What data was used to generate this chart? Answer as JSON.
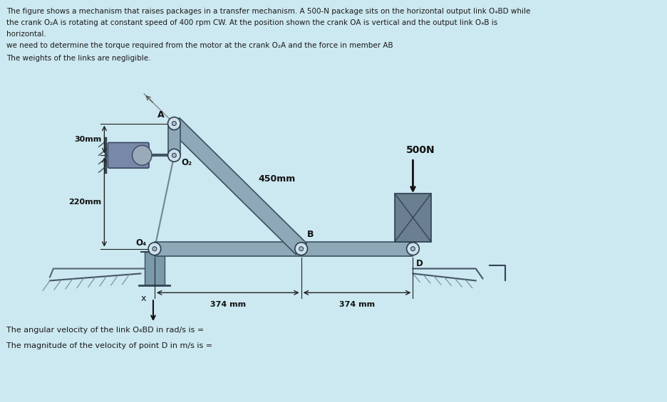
{
  "bg_color": "#cce8f0",
  "text_color": "#1a1a1a",
  "title_lines": [
    "The figure shows a mechanism that raises packages in a transfer mechanism. A 500-N package sits on the horizontal output link O₄BD while",
    "the crank O₂A is rotating at constant speed of 400 rpm CW. At the position shown the crank OA is vertical and the output link O₄B is",
    "horizontal."
  ],
  "subtitle1": "we need to determine the torque required from the motor at the crank O₂A and the force in member AB",
  "subtitle2": "The weights of the links are negligible.",
  "footer1": "The angular velocity of the link O₄BD in rad/s is =",
  "footer2": "The magnitude of the velocity of point D in m/s is =",
  "link_color": "#8fa8b8",
  "link_edge": "#3a5060",
  "joint_color": "#d0e0ea",
  "joint_edge": "#2a4050",
  "pkg_color": "#6a8090",
  "pkg_edge": "#2a4050",
  "motor_color": "#7888a8",
  "motor_edge": "#3a4860",
  "ground_color": "#7a9aaa",
  "dim_color": "#222222",
  "label_color": "#111111"
}
